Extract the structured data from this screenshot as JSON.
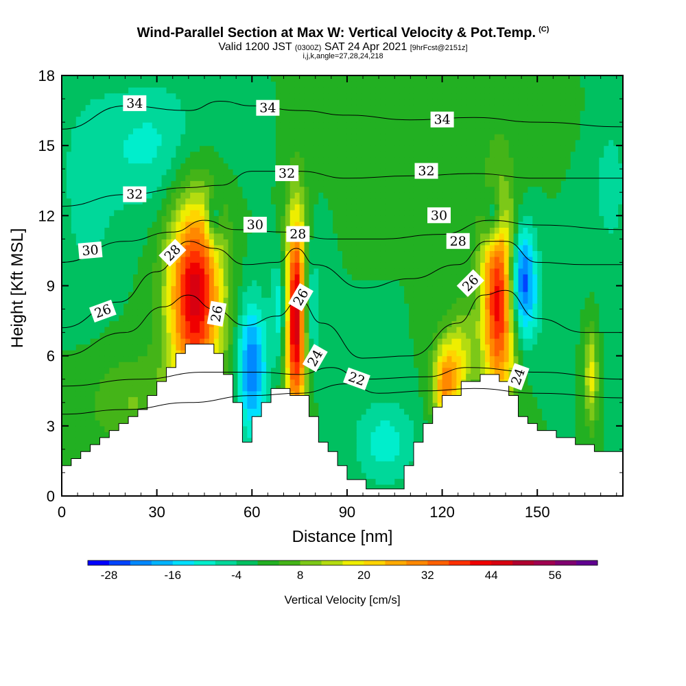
{
  "header": {
    "title_main": "Wind-Parallel Section at Max W: Vertical Velocity & Pot.Temp.",
    "title_copyright": "(C)",
    "valid_prefix": "Valid 1200 JST",
    "valid_zulu": "(0300Z)",
    "valid_date": "SAT 24 Apr 2021",
    "forecast": "[9hrFcst@2151z]",
    "indices": "i,j,k,angle=27,28,24,218"
  },
  "chart_data": {
    "type": "heatmap",
    "xlabel": "Distance [nm]",
    "ylabel": "Height [Kft MSL]",
    "xlim": [
      0,
      177
    ],
    "ylim": [
      0,
      18
    ],
    "x_ticks": [
      "0",
      "30",
      "60",
      "90",
      "120",
      "150"
    ],
    "y_ticks": [
      "0",
      "3",
      "6",
      "9",
      "12",
      "15",
      "18"
    ],
    "colorbar": {
      "title": "Vertical Velocity [cm/s]",
      "labels": [
        "-28",
        "-16",
        "-4",
        "8",
        "20",
        "32",
        "44",
        "56"
      ],
      "min": -32,
      "max": 64,
      "colors": [
        "#0000ff",
        "#0044ff",
        "#0088ff",
        "#00b4ff",
        "#00e0ff",
        "#00eecc",
        "#00d89a",
        "#00c060",
        "#22b022",
        "#44b418",
        "#7cc818",
        "#b4dc10",
        "#eeee00",
        "#ffd400",
        "#ffaa00",
        "#ff8800",
        "#ff6000",
        "#ff3000",
        "#f00000",
        "#d80010",
        "#b00030",
        "#a00050",
        "#800070",
        "#600090"
      ]
    },
    "terrain": [
      [
        0,
        1.3
      ],
      [
        3,
        1.3
      ],
      [
        3,
        1.6
      ],
      [
        6,
        1.6
      ],
      [
        6,
        1.9
      ],
      [
        9,
        1.9
      ],
      [
        9,
        2.2
      ],
      [
        12,
        2.2
      ],
      [
        12,
        2.5
      ],
      [
        15,
        2.5
      ],
      [
        15,
        2.8
      ],
      [
        18,
        2.8
      ],
      [
        18,
        3.1
      ],
      [
        21,
        3.1
      ],
      [
        21,
        3.4
      ],
      [
        24,
        3.4
      ],
      [
        24,
        3.7
      ],
      [
        27,
        3.7
      ],
      [
        27,
        4.3
      ],
      [
        30,
        4.3
      ],
      [
        30,
        4.9
      ],
      [
        33,
        4.9
      ],
      [
        33,
        5.5
      ],
      [
        36,
        5.5
      ],
      [
        36,
        6.1
      ],
      [
        39,
        6.1
      ],
      [
        39,
        6.5
      ],
      [
        48,
        6.5
      ],
      [
        48,
        6.1
      ],
      [
        51,
        6.1
      ],
      [
        51,
        5.2
      ],
      [
        54,
        5.2
      ],
      [
        54,
        4.0
      ],
      [
        57,
        4.0
      ],
      [
        57,
        2.3
      ],
      [
        60,
        2.3
      ],
      [
        60,
        3.4
      ],
      [
        63,
        3.4
      ],
      [
        63,
        4.0
      ],
      [
        66,
        4.0
      ],
      [
        66,
        4.6
      ],
      [
        72,
        4.6
      ],
      [
        72,
        4.3
      ],
      [
        78,
        4.3
      ],
      [
        78,
        3.4
      ],
      [
        81,
        3.4
      ],
      [
        81,
        2.3
      ],
      [
        84,
        2.3
      ],
      [
        84,
        1.9
      ],
      [
        87,
        1.9
      ],
      [
        87,
        1.3
      ],
      [
        90,
        1.3
      ],
      [
        90,
        0.7
      ],
      [
        96,
        0.7
      ],
      [
        96,
        0.3
      ],
      [
        108,
        0.3
      ],
      [
        108,
        1.3
      ],
      [
        111,
        1.3
      ],
      [
        111,
        2.3
      ],
      [
        114,
        2.3
      ],
      [
        114,
        3.1
      ],
      [
        117,
        3.1
      ],
      [
        117,
        3.8
      ],
      [
        120,
        3.8
      ],
      [
        120,
        4.3
      ],
      [
        126,
        4.3
      ],
      [
        126,
        4.9
      ],
      [
        132,
        4.9
      ],
      [
        132,
        5.2
      ],
      [
        138,
        5.2
      ],
      [
        138,
        4.9
      ],
      [
        141,
        4.9
      ],
      [
        141,
        4.3
      ],
      [
        144,
        4.3
      ],
      [
        144,
        3.4
      ],
      [
        147,
        3.4
      ],
      [
        147,
        3.1
      ],
      [
        150,
        3.1
      ],
      [
        150,
        2.8
      ],
      [
        156,
        2.8
      ],
      [
        156,
        2.5
      ],
      [
        162,
        2.5
      ],
      [
        162,
        2.2
      ],
      [
        168,
        2.2
      ],
      [
        168,
        1.9
      ],
      [
        171,
        1.9
      ],
      [
        171,
        1.9
      ],
      [
        174,
        1.9
      ],
      [
        174,
        1.9
      ],
      [
        177,
        1.9
      ]
    ],
    "w_cells": [
      {
        "x": 42,
        "y": 8.6,
        "sx": 6,
        "sy": 3.0,
        "value": 46
      },
      {
        "x": 74,
        "y": 7.6,
        "sx": 2.5,
        "sy": 3.2,
        "value": 50
      },
      {
        "x": 138,
        "y": 8.3,
        "sx": 4,
        "sy": 3.0,
        "value": 44
      },
      {
        "x": 121,
        "y": 4.8,
        "sx": 3,
        "sy": 1.3,
        "value": 28
      },
      {
        "x": 167,
        "y": 5.2,
        "sx": 1.5,
        "sy": 1.5,
        "value": 18
      },
      {
        "x": 60,
        "y": 5.5,
        "sx": 3.2,
        "sy": 2.0,
        "value": -24
      },
      {
        "x": 48,
        "y": 11.8,
        "sx": 1.5,
        "sy": 0.8,
        "value": -14
      },
      {
        "x": 69,
        "y": 8.0,
        "sx": 2.0,
        "sy": 1.6,
        "value": -14
      },
      {
        "x": 78,
        "y": 8.0,
        "sx": 2.0,
        "sy": 2.0,
        "value": -16
      },
      {
        "x": 145,
        "y": 9.6,
        "sx": 3.0,
        "sy": 1.5,
        "value": -24
      },
      {
        "x": 136,
        "y": 12.0,
        "sx": 2.0,
        "sy": 0.8,
        "value": -18
      },
      {
        "x": 145,
        "y": 8.0,
        "sx": 4.0,
        "sy": 1.5,
        "value": -12
      },
      {
        "x": 102,
        "y": 2.3,
        "sx": 7.0,
        "sy": 1.3,
        "value": -10
      },
      {
        "x": 28,
        "y": 15.0,
        "sx": 14.0,
        "sy": 2.0,
        "value": -9
      },
      {
        "x": 140,
        "y": 16.5,
        "sx": 30,
        "sy": 1.5,
        "value": 2
      },
      {
        "x": 8,
        "y": 12.5,
        "sx": 6,
        "sy": 3.0,
        "value": -5
      },
      {
        "x": 173,
        "y": 14.0,
        "sx": 6,
        "sy": 4.0,
        "value": -5
      },
      {
        "x": 22,
        "y": 4.0,
        "sx": 10,
        "sy": 1.5,
        "value": 8
      },
      {
        "x": 126,
        "y": 6.0,
        "sx": 3,
        "sy": 1.5,
        "value": 14
      }
    ],
    "theta_contours": [
      {
        "label": "22",
        "label_at": [
          93,
          5.0
        ],
        "label_angle": 20,
        "points": [
          [
            0,
            3.5
          ],
          [
            20,
            3.7
          ],
          [
            40,
            4.0
          ],
          [
            60,
            4.3
          ],
          [
            75,
            4.4
          ],
          [
            90,
            4.8
          ],
          [
            100,
            4.4
          ],
          [
            115,
            4.5
          ],
          [
            130,
            4.6
          ],
          [
            150,
            4.4
          ],
          [
            177,
            4.2
          ]
        ]
      },
      {
        "label": "24",
        "label_at": [
          80,
          5.9
        ],
        "label_angle": -60,
        "points": [
          [
            0,
            4.7
          ],
          [
            25,
            5.0
          ],
          [
            45,
            5.3
          ],
          [
            62,
            5.3
          ],
          [
            75,
            5.2
          ],
          [
            85,
            5.5
          ],
          [
            95,
            5.0
          ],
          [
            115,
            5.1
          ],
          [
            128,
            5.5
          ],
          [
            150,
            5.3
          ],
          [
            177,
            5.0
          ]
        ]
      },
      {
        "label": "24",
        "label_at": [
          144,
          5.1
        ],
        "label_angle": -70,
        "points": []
      },
      {
        "label": "26",
        "label_at": [
          13,
          7.9
        ],
        "label_angle": -20,
        "points": [
          [
            0,
            6.0
          ],
          [
            20,
            7.0
          ],
          [
            32,
            8.1
          ],
          [
            40,
            8.6
          ],
          [
            48,
            8.0
          ],
          [
            58,
            7.3
          ],
          [
            68,
            7.7
          ],
          [
            75,
            8.4
          ],
          [
            82,
            7.4
          ],
          [
            95,
            5.9
          ],
          [
            110,
            6.0
          ],
          [
            125,
            7.4
          ],
          [
            133,
            8.6
          ],
          [
            140,
            8.8
          ],
          [
            150,
            7.6
          ],
          [
            165,
            7.0
          ],
          [
            177,
            7.0
          ]
        ]
      },
      {
        "label": "28",
        "label_at": [
          35,
          10.4
        ],
        "label_angle": -45,
        "points": [
          [
            0,
            7.2
          ],
          [
            18,
            8.3
          ],
          [
            30,
            9.6
          ],
          [
            40,
            10.9
          ],
          [
            48,
            10.6
          ],
          [
            58,
            9.9
          ],
          [
            68,
            10.0
          ],
          [
            74,
            10.6
          ],
          [
            80,
            9.9
          ],
          [
            95,
            8.9
          ],
          [
            110,
            9.3
          ],
          [
            125,
            9.9
          ],
          [
            134,
            10.9
          ],
          [
            140,
            10.9
          ],
          [
            150,
            10.0
          ],
          [
            165,
            9.9
          ],
          [
            177,
            9.9
          ]
        ]
      },
      {
        "label": "30",
        "label_at": [
          9,
          10.5
        ],
        "label_angle": -5,
        "points": [
          [
            0,
            10.0
          ],
          [
            20,
            10.9
          ],
          [
            35,
            11.3
          ],
          [
            45,
            11.8
          ],
          [
            55,
            11.4
          ],
          [
            70,
            11.3
          ],
          [
            85,
            11.0
          ],
          [
            100,
            11.0
          ],
          [
            120,
            11.2
          ],
          [
            135,
            11.8
          ],
          [
            150,
            11.6
          ],
          [
            177,
            11.4
          ]
        ]
      },
      {
        "label": "32",
        "label_at": [
          23,
          12.9
        ],
        "label_angle": 0,
        "points": [
          [
            0,
            12.4
          ],
          [
            20,
            12.9
          ],
          [
            40,
            13.2
          ],
          [
            50,
            13.3
          ],
          [
            60,
            13.9
          ],
          [
            75,
            13.9
          ],
          [
            90,
            13.6
          ],
          [
            110,
            13.7
          ],
          [
            130,
            13.8
          ],
          [
            150,
            13.6
          ],
          [
            177,
            13.6
          ]
        ]
      },
      {
        "label": "34",
        "label_at": [
          23,
          16.8
        ],
        "label_angle": 0,
        "points": [
          [
            0,
            15.7
          ],
          [
            20,
            16.7
          ],
          [
            40,
            16.5
          ],
          [
            50,
            16.9
          ],
          [
            60,
            16.7
          ],
          [
            75,
            16.5
          ],
          [
            90,
            16.3
          ],
          [
            110,
            16.1
          ],
          [
            130,
            16.2
          ],
          [
            150,
            16.0
          ],
          [
            177,
            15.8
          ]
        ]
      }
    ],
    "theta_labels_extra": [
      {
        "label": "28",
        "at": [
          74.5,
          11.2
        ],
        "angle": 0
      },
      {
        "label": "26",
        "at": [
          75.5,
          8.5
        ],
        "angle": -60
      },
      {
        "label": "26",
        "at": [
          49,
          7.8
        ],
        "angle": -80
      },
      {
        "label": "26",
        "at": [
          129,
          9.1
        ],
        "angle": -45
      },
      {
        "label": "28",
        "at": [
          125,
          10.9
        ],
        "angle": 0
      },
      {
        "label": "30",
        "at": [
          61,
          11.6
        ],
        "angle": 0
      },
      {
        "label": "30",
        "at": [
          119,
          12.0
        ],
        "angle": 0
      },
      {
        "label": "32",
        "at": [
          71,
          13.8
        ],
        "angle": 0
      },
      {
        "label": "32",
        "at": [
          115,
          13.9
        ],
        "angle": 0
      },
      {
        "label": "34",
        "at": [
          65,
          16.6
        ],
        "angle": 0
      },
      {
        "label": "34",
        "at": [
          120,
          16.1
        ],
        "angle": 0
      }
    ]
  }
}
